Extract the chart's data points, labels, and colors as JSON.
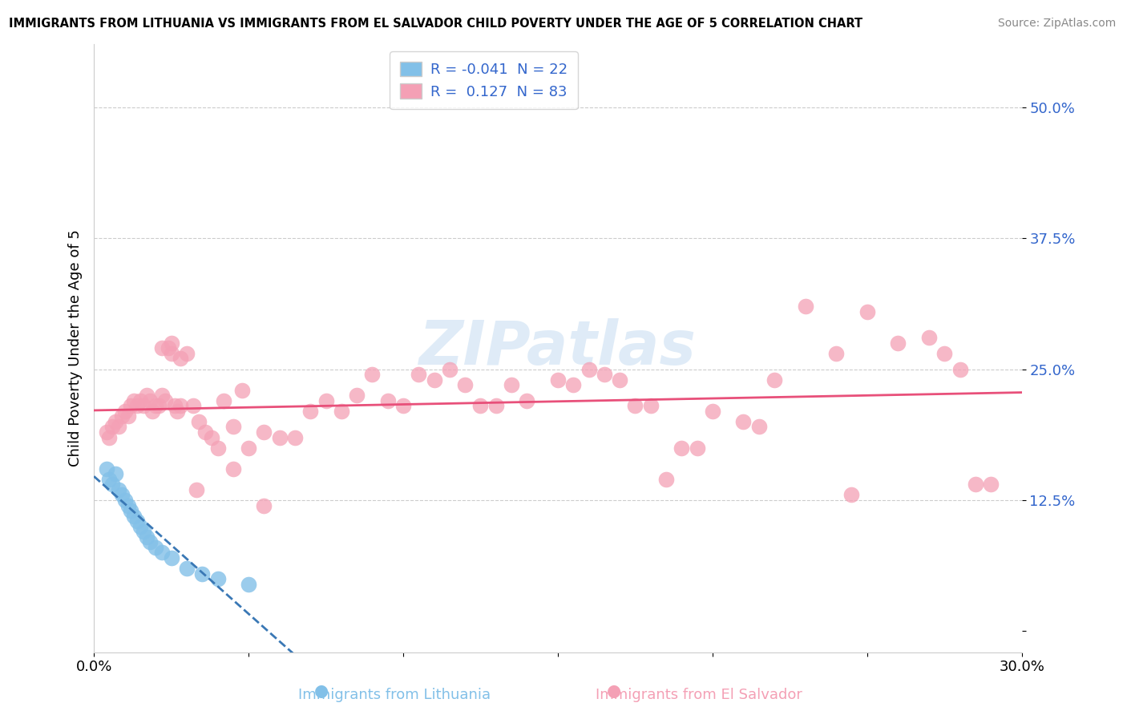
{
  "title": "IMMIGRANTS FROM LITHUANIA VS IMMIGRANTS FROM EL SALVADOR CHILD POVERTY UNDER THE AGE OF 5 CORRELATION CHART",
  "source": "Source: ZipAtlas.com",
  "ylabel": "Child Poverty Under the Age of 5",
  "xlabel_lithuania": "Immigrants from Lithuania",
  "xlabel_elsalvador": "Immigrants from El Salvador",
  "r_lithuania": -0.041,
  "n_lithuania": 22,
  "r_elsalvador": 0.127,
  "n_elsalvador": 83,
  "xlim": [
    0.0,
    0.3
  ],
  "ylim": [
    -0.02,
    0.56
  ],
  "yticks": [
    0.0,
    0.125,
    0.25,
    0.375,
    0.5
  ],
  "ytick_labels": [
    "",
    "12.5%",
    "25.0%",
    "37.5%",
    "50.0%"
  ],
  "xtick_vals": [
    0.0,
    0.05,
    0.1,
    0.15,
    0.2,
    0.25,
    0.3
  ],
  "xtick_labels": [
    "0.0%",
    "",
    "",
    "",
    "",
    "",
    "30.0%"
  ],
  "color_lithuania": "#82c0e8",
  "color_elsalvador": "#f4a0b5",
  "line_color_lithuania": "#3a78b5",
  "line_color_elsalvador": "#e8507a",
  "watermark": "ZIPatlas",
  "lithuania_x": [
    0.004,
    0.005,
    0.006,
    0.007,
    0.008,
    0.009,
    0.01,
    0.011,
    0.012,
    0.013,
    0.014,
    0.015,
    0.016,
    0.017,
    0.018,
    0.02,
    0.022,
    0.025,
    0.03,
    0.035,
    0.04,
    0.05
  ],
  "lithuania_y": [
    0.155,
    0.145,
    0.14,
    0.15,
    0.135,
    0.13,
    0.125,
    0.12,
    0.115,
    0.11,
    0.105,
    0.1,
    0.095,
    0.09,
    0.085,
    0.08,
    0.075,
    0.07,
    0.06,
    0.055,
    0.05,
    0.045
  ],
  "elsalvador_x": [
    0.004,
    0.005,
    0.006,
    0.007,
    0.008,
    0.009,
    0.01,
    0.011,
    0.012,
    0.013,
    0.014,
    0.015,
    0.016,
    0.017,
    0.018,
    0.019,
    0.02,
    0.021,
    0.022,
    0.023,
    0.024,
    0.025,
    0.026,
    0.027,
    0.028,
    0.03,
    0.032,
    0.034,
    0.036,
    0.038,
    0.04,
    0.042,
    0.045,
    0.048,
    0.05,
    0.055,
    0.06,
    0.065,
    0.07,
    0.075,
    0.08,
    0.085,
    0.09,
    0.095,
    0.1,
    0.105,
    0.11,
    0.115,
    0.12,
    0.125,
    0.13,
    0.135,
    0.14,
    0.15,
    0.155,
    0.16,
    0.165,
    0.17,
    0.175,
    0.18,
    0.185,
    0.19,
    0.195,
    0.2,
    0.21,
    0.215,
    0.22,
    0.23,
    0.24,
    0.245,
    0.25,
    0.26,
    0.27,
    0.275,
    0.28,
    0.285,
    0.29,
    0.022,
    0.025,
    0.028,
    0.033,
    0.045,
    0.055
  ],
  "elsalvador_y": [
    0.19,
    0.185,
    0.195,
    0.2,
    0.195,
    0.205,
    0.21,
    0.205,
    0.215,
    0.22,
    0.215,
    0.22,
    0.215,
    0.225,
    0.22,
    0.21,
    0.215,
    0.215,
    0.225,
    0.22,
    0.27,
    0.265,
    0.215,
    0.21,
    0.26,
    0.265,
    0.215,
    0.2,
    0.19,
    0.185,
    0.175,
    0.22,
    0.195,
    0.23,
    0.175,
    0.19,
    0.185,
    0.185,
    0.21,
    0.22,
    0.21,
    0.225,
    0.245,
    0.22,
    0.215,
    0.245,
    0.24,
    0.25,
    0.235,
    0.215,
    0.215,
    0.235,
    0.22,
    0.24,
    0.235,
    0.25,
    0.245,
    0.24,
    0.215,
    0.215,
    0.145,
    0.175,
    0.175,
    0.21,
    0.2,
    0.195,
    0.24,
    0.31,
    0.265,
    0.13,
    0.305,
    0.275,
    0.28,
    0.265,
    0.25,
    0.14,
    0.14,
    0.27,
    0.275,
    0.215,
    0.135,
    0.155,
    0.12
  ]
}
